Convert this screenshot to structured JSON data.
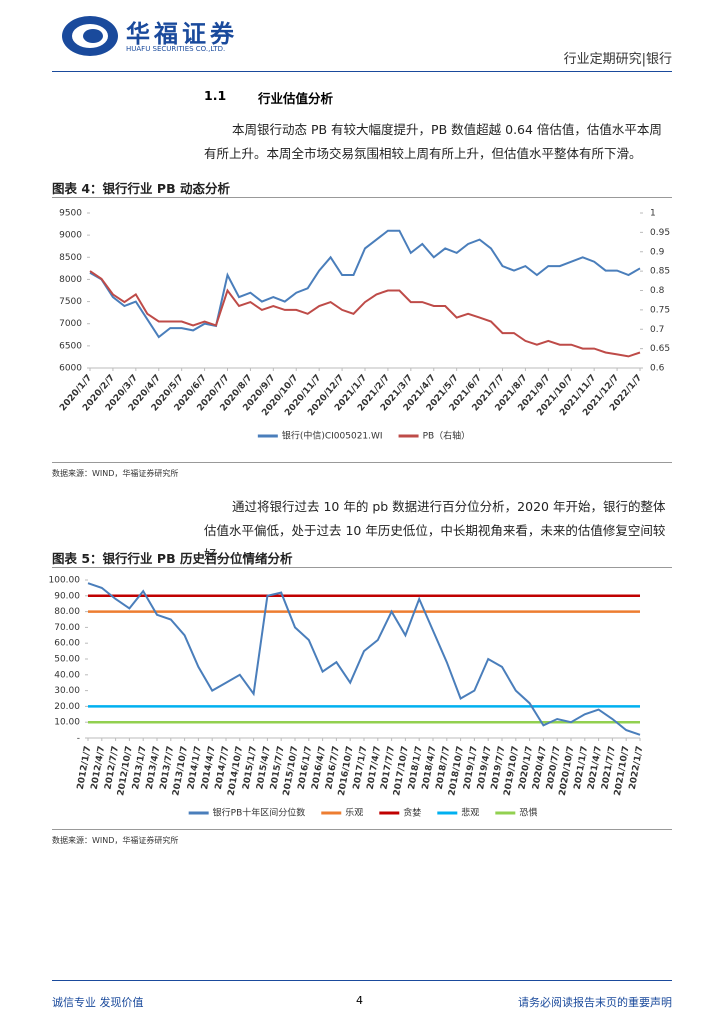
{
  "header": {
    "company": "华福证券",
    "company_en": "HUAFU SECURITIES CO.,LTD.",
    "report_type": "行业定期研究|银行"
  },
  "section": {
    "number": "1.1",
    "title": "行业估值分析"
  },
  "paragraphs": [
    "本周银行动态 PB 有较大幅度提升，PB 数值超越 0.64 倍估值，估值水平本周有所上升。本周全市场交易氛围相较上周有所上升，但估值水平整体有所下滑。",
    "通过将银行过去 10 年的 pb 数据进行百分位分析，2020 年开始，银行的整体估值水平偏低，处于过去 10 年历史低位，中长期视角来看，未来的估值修复空间较好。"
  ],
  "chart_data": [
    {
      "type": "line",
      "title": "图表 4：银行行业 PB 动态分析",
      "source": "数据来源：WIND，华福证券研究所",
      "categories": [
        "2020/1/7",
        null,
        "2020/2/7",
        null,
        "2020/3/7",
        null,
        "2020/4/7",
        null,
        "2020/5/7",
        null,
        "2020/6/7",
        null,
        "2020/7/7",
        null,
        "2020/8/7",
        null,
        "2020/9/7",
        null,
        "2020/10/7",
        null,
        "2020/11/7",
        null,
        "2020/12/7",
        null,
        "2021/1/7",
        null,
        "2021/2/7",
        null,
        "2021/3/7",
        null,
        "2021/4/7",
        null,
        "2021/5/7",
        null,
        "2021/6/7",
        null,
        "2021/7/7",
        null,
        "2021/8/7",
        null,
        "2021/9/7",
        null,
        "2021/10/7",
        null,
        "2021/11/7",
        null,
        "2021/12/7",
        null,
        "2022/1/7"
      ],
      "series": [
        {
          "name": "银行(中信)CI005021.WI",
          "color": "#4a7ebb",
          "values": [
            8150,
            8000,
            7600,
            7400,
            7500,
            7100,
            6700,
            6900,
            6900,
            6850,
            7000,
            6950,
            8100,
            7600,
            7700,
            7500,
            7600,
            7500,
            7700,
            7800,
            8200,
            8500,
            8100,
            8100,
            8700,
            8900,
            9100,
            9100,
            8600,
            8800,
            8500,
            8700,
            8600,
            8800,
            8900,
            8700,
            8300,
            8200,
            8300,
            8100,
            8300,
            8300,
            8400,
            8500,
            8400,
            8200,
            8200,
            8100,
            8250
          ]
        },
        {
          "name": "PB（右轴）",
          "color": "#be4b48",
          "axis": "y2",
          "values": [
            0.85,
            0.83,
            0.79,
            0.77,
            0.79,
            0.74,
            0.72,
            0.72,
            0.72,
            0.71,
            0.72,
            0.71,
            0.8,
            0.76,
            0.77,
            0.75,
            0.76,
            0.75,
            0.75,
            0.74,
            0.76,
            0.77,
            0.75,
            0.74,
            0.77,
            0.79,
            0.8,
            0.8,
            0.77,
            0.77,
            0.76,
            0.76,
            0.73,
            0.74,
            0.73,
            0.72,
            0.69,
            0.69,
            0.67,
            0.66,
            0.67,
            0.66,
            0.66,
            0.65,
            0.65,
            0.64,
            0.635,
            0.63,
            0.64
          ]
        }
      ],
      "ylim": [
        6000,
        9500
      ],
      "yticks": [
        6000,
        6500,
        7000,
        7500,
        8000,
        8500,
        9000,
        9500
      ],
      "y2lim": [
        0.6,
        1
      ],
      "y2ticks": [
        0.6,
        0.65,
        0.7,
        0.75,
        0.8,
        0.85,
        0.9,
        0.95,
        1
      ],
      "grid": false
    },
    {
      "type": "line",
      "title": "图表 5：银行行业 PB 历史百分位情绪分析",
      "source": "数据来源：WIND，华福证券研究所",
      "categories": [
        "2012/1/7",
        "2012/4/7",
        "2012/7/7",
        "2012/10/7",
        "2013/1/7",
        "2013/4/7",
        "2013/7/7",
        "2013/10/7",
        "2014/1/7",
        "2014/4/7",
        "2014/7/7",
        "2014/10/7",
        "2015/1/7",
        "2015/4/7",
        "2015/7/7",
        "2015/10/7",
        "2016/1/7",
        "2016/4/7",
        "2016/7/7",
        "2016/10/7",
        "2017/1/7",
        "2017/4/7",
        "2017/7/7",
        "2017/10/7",
        "2018/1/7",
        "2018/4/7",
        "2018/7/7",
        "2018/10/7",
        "2019/1/7",
        "2019/4/7",
        "2019/7/7",
        "2019/10/7",
        "2020/1/7",
        "2020/4/7",
        "2020/7/7",
        "2020/10/7",
        "2021/1/7",
        "2021/4/7",
        "2021/7/7",
        "2021/10/7",
        "2022/1/7"
      ],
      "series": [
        {
          "name": "银行PB十年区间分位数",
          "color": "#4a7ebb",
          "values": [
            98,
            95,
            88,
            82,
            93,
            78,
            75,
            65,
            45,
            30,
            35,
            40,
            28,
            90,
            92,
            70,
            62,
            42,
            48,
            35,
            55,
            62,
            80,
            65,
            88,
            68,
            48,
            25,
            30,
            50,
            45,
            30,
            22,
            8,
            12,
            10,
            15,
            18,
            12,
            5,
            2
          ]
        }
      ],
      "reference_lines": [
        {
          "name": "乐观",
          "color": "#ed7d31",
          "value": 80
        },
        {
          "name": "贪婪",
          "color": "#c00000",
          "value": 90
        },
        {
          "name": "悲观",
          "color": "#00b0f0",
          "value": 20
        },
        {
          "name": "恐惧",
          "color": "#92d050",
          "value": 10
        }
      ],
      "ylim": [
        0,
        100
      ],
      "yticks": [
        {
          "value": 0,
          "label": "-"
        },
        {
          "value": 10,
          "label": "10.00"
        },
        {
          "value": 20,
          "label": "20.00"
        },
        {
          "value": 30,
          "label": "30.00"
        },
        {
          "value": 40,
          "label": "40.00"
        },
        {
          "value": 50,
          "label": "50.00"
        },
        {
          "value": 60,
          "label": "60.00"
        },
        {
          "value": 70,
          "label": "70.00"
        },
        {
          "value": 80,
          "label": "80.00"
        },
        {
          "value": 90,
          "label": "90.00"
        },
        {
          "value": 100,
          "label": "100.00"
        }
      ],
      "grid": false
    }
  ],
  "footer": {
    "left": "诚信专业 发现价值",
    "page": "4",
    "right": "请务必阅读报告末页的重要声明"
  }
}
